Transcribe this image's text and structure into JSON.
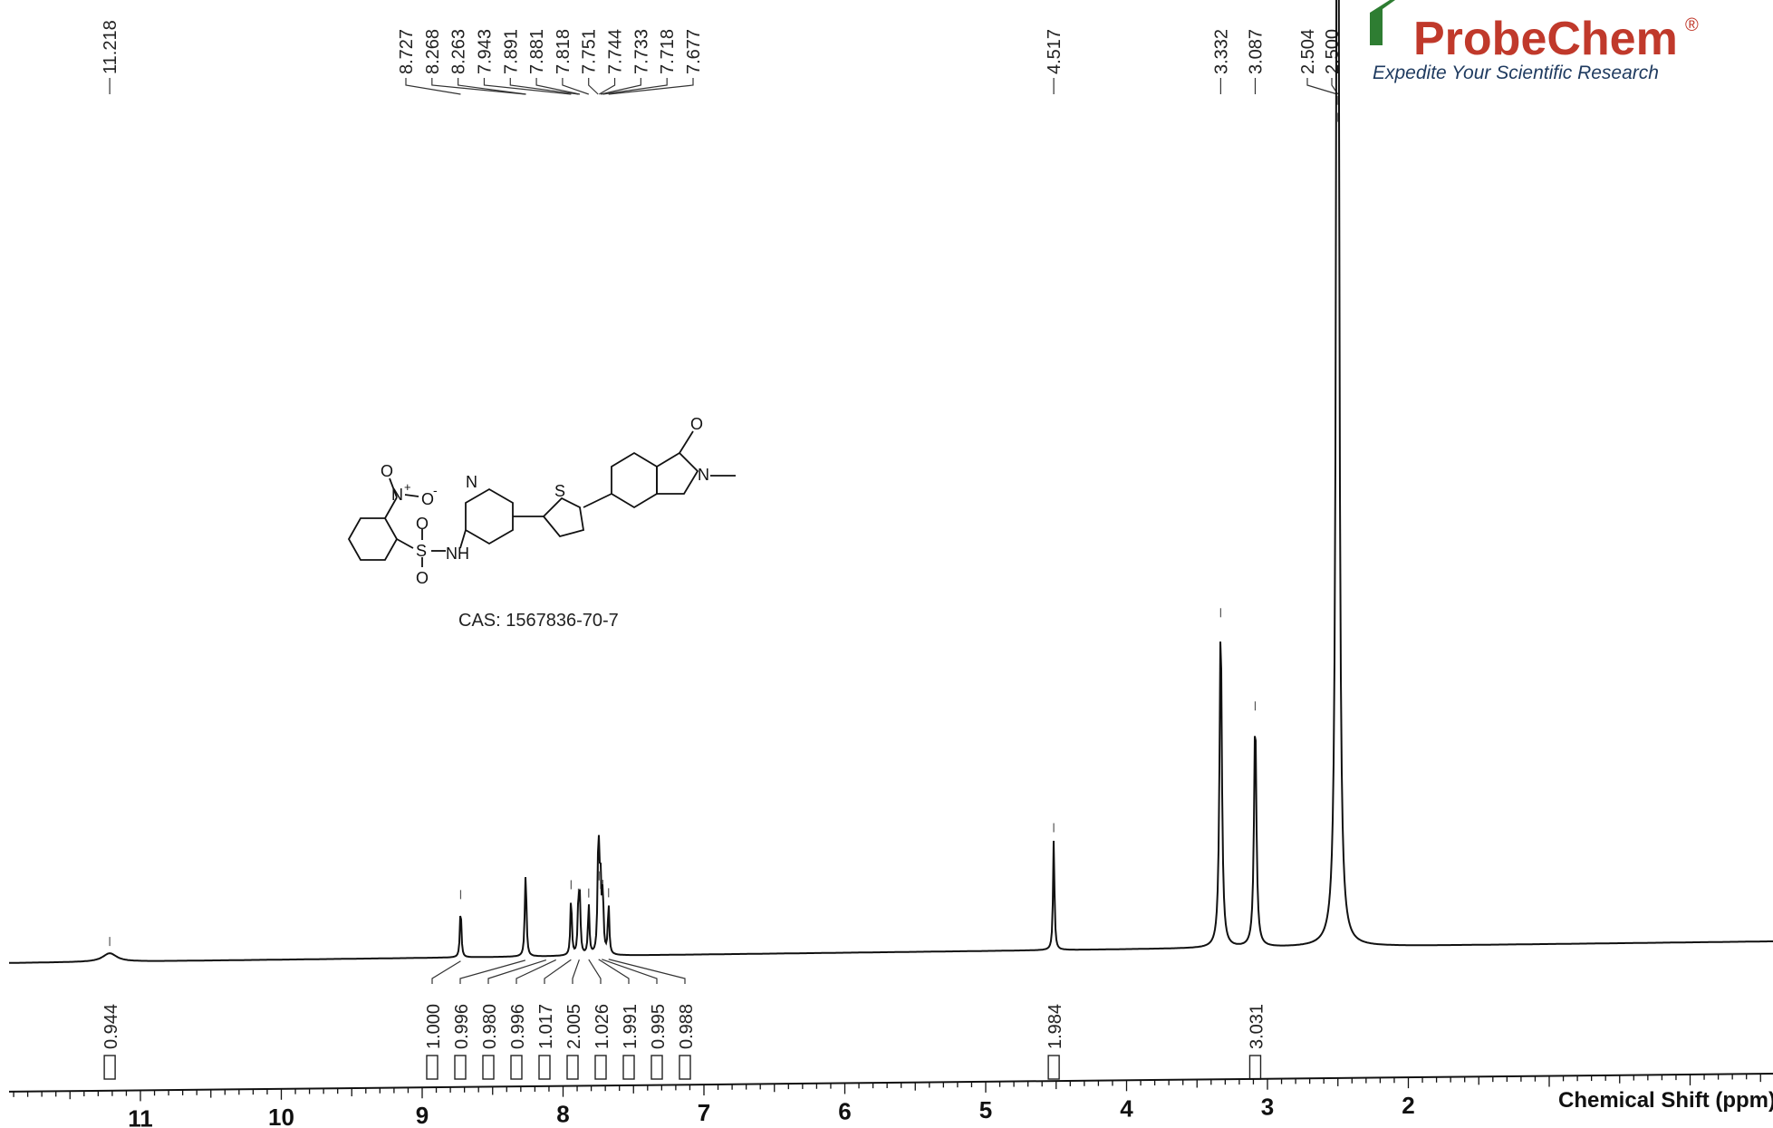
{
  "chart_data": {
    "type": "line",
    "xlabel": "Chemical Shift (ppm)",
    "xlim": [
      12.0,
      -0.5
    ],
    "x_ticks": [
      11,
      10,
      9,
      8,
      7,
      6,
      5,
      4,
      3,
      2
    ],
    "peaks": [
      {
        "shift": 11.218,
        "label": "11.218",
        "height": 0.01
      },
      {
        "shift": 8.727,
        "label": "8.727",
        "height": 0.06
      },
      {
        "shift": 8.268,
        "label": "8.268",
        "height": 0.06
      },
      {
        "shift": 8.263,
        "label": "8.263",
        "height": 0.05
      },
      {
        "shift": 7.943,
        "label": "7.943",
        "height": 0.07
      },
      {
        "shift": 7.891,
        "label": "7.891",
        "height": 0.06
      },
      {
        "shift": 7.881,
        "label": "7.881",
        "height": 0.06
      },
      {
        "shift": 7.818,
        "label": "7.818",
        "height": 0.06
      },
      {
        "shift": 7.751,
        "label": "7.751",
        "height": 0.09
      },
      {
        "shift": 7.744,
        "label": "7.744",
        "height": 0.08
      },
      {
        "shift": 7.733,
        "label": "7.733",
        "height": 0.07
      },
      {
        "shift": 7.718,
        "label": "7.718",
        "height": 0.07
      },
      {
        "shift": 7.677,
        "label": "7.677",
        "height": 0.06
      },
      {
        "shift": 4.517,
        "label": "4.517",
        "height": 0.13
      },
      {
        "shift": 3.332,
        "label": "3.332",
        "height": 0.38
      },
      {
        "shift": 3.087,
        "label": "3.087",
        "height": 0.27
      },
      {
        "shift": 2.504,
        "label": "2.504",
        "height": 0.98
      },
      {
        "shift": 2.5,
        "label": "2.500",
        "height": 0.96
      }
    ],
    "integrals": [
      {
        "value": "0.944",
        "shift": 11.218
      },
      {
        "value": "1.000",
        "shift": 8.727
      },
      {
        "value": "0.996",
        "shift": 8.268
      },
      {
        "value": "0.980",
        "shift": 8.12
      },
      {
        "value": "0.996",
        "shift": 8.05
      },
      {
        "value": "1.017",
        "shift": 7.943
      },
      {
        "value": "2.005",
        "shift": 7.885
      },
      {
        "value": "1.026",
        "shift": 7.818
      },
      {
        "value": "1.991",
        "shift": 7.748
      },
      {
        "value": "0.995",
        "shift": 7.725
      },
      {
        "value": "0.988",
        "shift": 7.677
      },
      {
        "value": "1.984",
        "shift": 4.517
      },
      {
        "value": "3.031",
        "shift": 3.087
      }
    ],
    "annotations": {
      "cas": "CAS: 1567836-70-7"
    }
  },
  "logo": {
    "brand": "ProbeChem",
    "registered": "®",
    "tagline": "Expedite Your Scientific Research"
  },
  "structure_atoms": {
    "o_nitro": "O",
    "n_plus": "N",
    "plus": "+",
    "o_minus": "O",
    "minus": "-",
    "s_sulfonyl": "S",
    "o_sulfonyl_top": "O",
    "o_sulfonyl_bottom": "O",
    "nh": "NH",
    "n_pyridine": "N",
    "s_thiophene": "S",
    "o_carbonyl": "O",
    "n_lactam": "N"
  },
  "colors": {
    "spectrum": "#111111",
    "brand_red": "#c0392b",
    "brand_green": "#2e7d32",
    "tagline": "#1e3a5f"
  }
}
